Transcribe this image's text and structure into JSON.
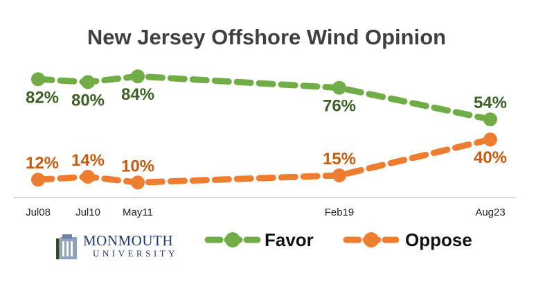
{
  "chart_data": {
    "type": "line",
    "title": "New Jersey Offshore Wind Opinion",
    "categories": [
      "Jul08",
      "Jul10",
      "May11",
      "Feb19",
      "Aug23"
    ],
    "series": [
      {
        "name": "Favor",
        "values": [
          82,
          80,
          84,
          76,
          54
        ],
        "labels": [
          "82%",
          "80%",
          "84%",
          "76%",
          "54%"
        ],
        "color": "#70ad47",
        "label_color": "#3b6126"
      },
      {
        "name": "Oppose",
        "values": [
          12,
          14,
          10,
          15,
          40
        ],
        "labels": [
          "12%",
          "14%",
          "10%",
          "15%",
          "40%"
        ],
        "color": "#ed7d31",
        "label_color": "#c55a11"
      }
    ],
    "ylim": [
      0,
      100
    ],
    "grid": false,
    "legend": "bottom",
    "xlabel": "",
    "ylabel": ""
  },
  "logo": {
    "line1": "MONMOUTH",
    "line2": "UNIVERSITY"
  }
}
